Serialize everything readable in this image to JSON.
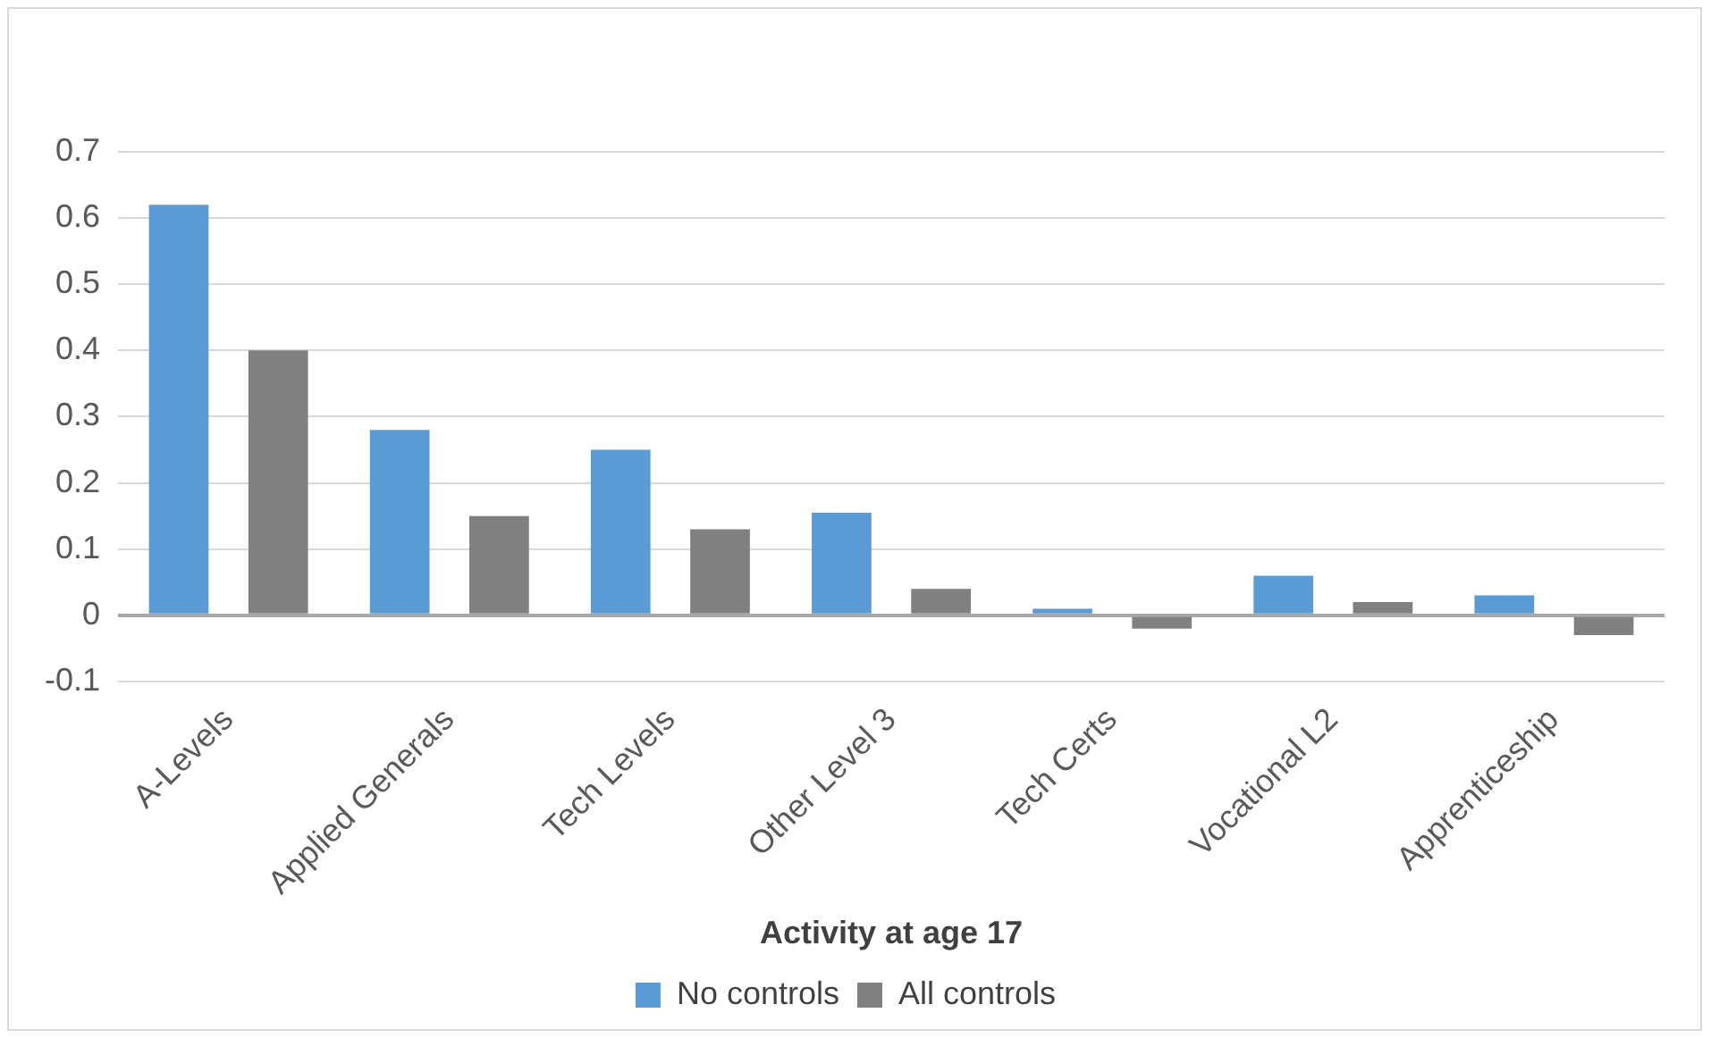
{
  "chart_data": {
    "type": "bar",
    "xlabel": "Activity at age 17",
    "categories": [
      "A-Levels",
      "Applied Generals",
      "Tech Levels",
      "Other Level 3",
      "Tech Certs",
      "Vocational L2",
      "Apprenticeship"
    ],
    "series": [
      {
        "name": "No controls",
        "color": "#5b9bd5",
        "values": [
          0.62,
          0.28,
          0.25,
          0.155,
          0.01,
          0.06,
          0.03
        ]
      },
      {
        "name": "All controls",
        "color": "#808080",
        "values": [
          0.4,
          0.15,
          0.13,
          0.04,
          -0.02,
          0.02,
          -0.03
        ]
      }
    ],
    "ylim": [
      -0.1,
      0.7
    ],
    "yticks": [
      -0.1,
      0,
      0.1,
      0.2,
      0.3,
      0.4,
      0.5,
      0.6,
      0.7
    ],
    "grid": "y",
    "legend": "bottom"
  }
}
